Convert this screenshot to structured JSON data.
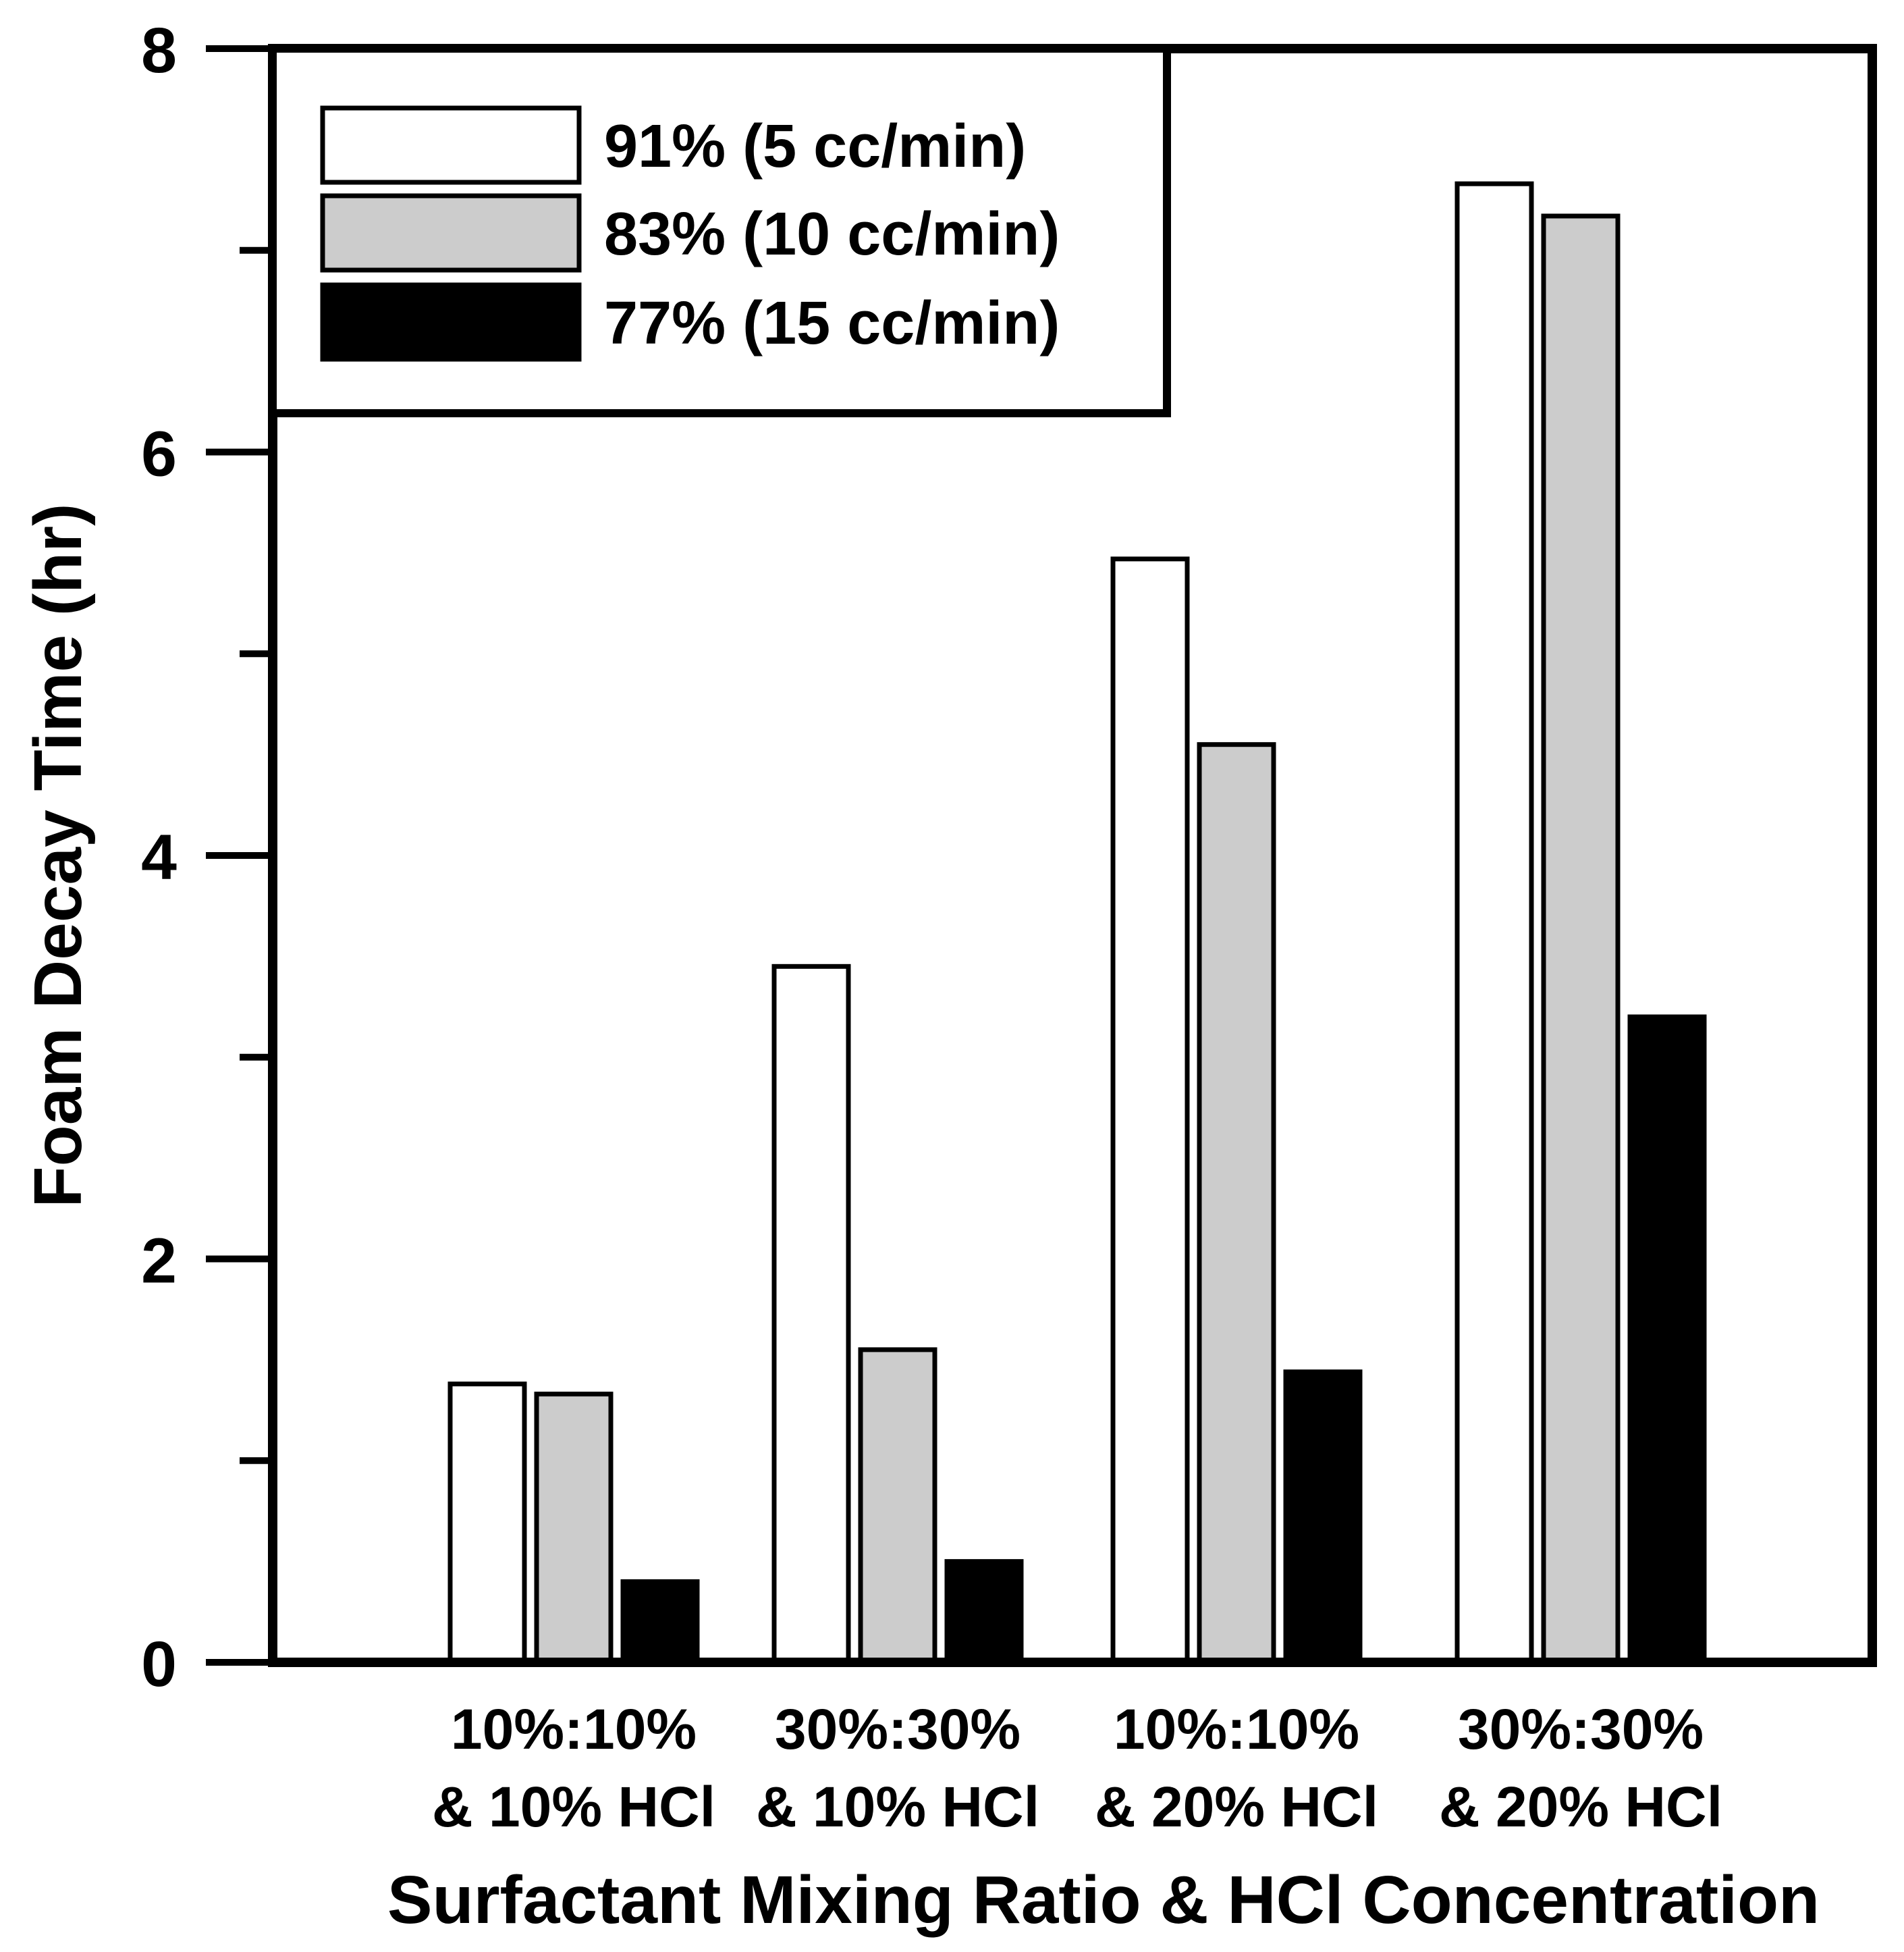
{
  "chart_data": {
    "type": "bar",
    "title": "",
    "xlabel": "Surfactant Mixing Ratio & HCl Concentration",
    "ylabel": "Foam Decay Time (hr)",
    "ylim": [
      0,
      8
    ],
    "yticks": [
      0,
      2,
      4,
      6,
      8
    ],
    "yticks_minor": [
      1,
      3,
      5,
      7
    ],
    "grid": false,
    "legend_position": "top-left",
    "categories": [
      [
        "10%:10%",
        "& 10% HCl"
      ],
      [
        "30%:30%",
        "& 10% HCl"
      ],
      [
        "10%:10%",
        "& 20% HCl"
      ],
      [
        "30%:30%",
        "& 20% HCl"
      ]
    ],
    "series": [
      {
        "name": "91% (5 cc/min)",
        "values": [
          1.38,
          3.45,
          5.47,
          7.33
        ],
        "fill": "#ffffff"
      },
      {
        "name": "83% (10 cc/min)",
        "values": [
          1.33,
          1.55,
          4.55,
          7.17
        ],
        "fill": "#cccccc"
      },
      {
        "name": "77% (15 cc/min)",
        "values": [
          0.4,
          0.5,
          1.44,
          3.2
        ],
        "fill": "#000000"
      }
    ],
    "colors": {
      "axis": "#000000",
      "outline": "#000000"
    }
  }
}
